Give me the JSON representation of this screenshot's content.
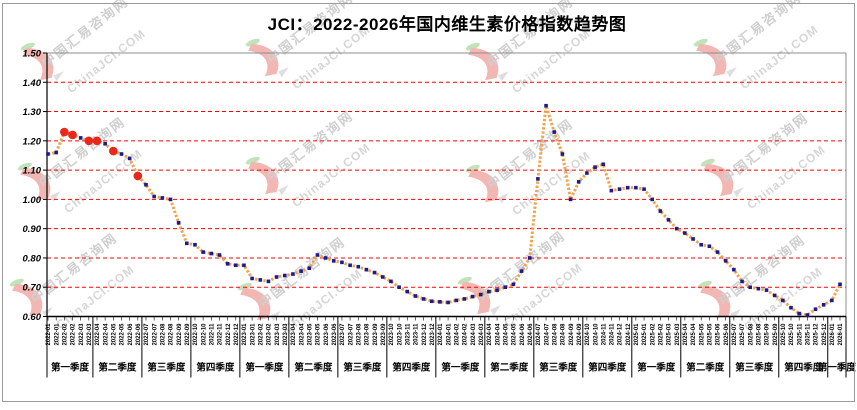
{
  "title": "JCI：2022-2026年国内维生素价格指数趋势图",
  "watermark": {
    "text_cn": "中国汇易咨询网",
    "text_en": "ChinaJCI.COM"
  },
  "chart_data": {
    "type": "line",
    "title": "JCI：2022-2026年国内维生素价格指数趋势图",
    "xlabel": "",
    "ylabel": "",
    "ylim": [
      0.6,
      1.5
    ],
    "ytick_step": 0.1,
    "ytick_labels": [
      "1.50",
      "1.40",
      "1.30",
      "1.20",
      "1.10",
      "1.00",
      "0.90",
      "0.80",
      "0.70",
      "0.60"
    ],
    "grid": "horizontal red dashed lines at 0.70-1.40, solid frame at 1.50 and 0.60",
    "legend_position": "none",
    "marker_style": "small navy squares connected by orange dotted line; six red circle highlights in early 2022",
    "x_labels": [
      "2022-01",
      "2022-01",
      "2022-02",
      "2022-02",
      "2022-03",
      "2022-03",
      "2022-04",
      "2022-04",
      "2022-05",
      "2022-05",
      "2022-06",
      "2022-06",
      "2022-07",
      "2022-07",
      "2022-08",
      "2022-08",
      "2022-09",
      "2022-09",
      "2022-10",
      "2022-10",
      "2022-11",
      "2022-11",
      "2022-12",
      "2022-12",
      "2023-01",
      "2023-01",
      "2023-02",
      "2023-02",
      "2023-03",
      "2023-03",
      "2023-04",
      "2023-04",
      "2023-05",
      "2023-05",
      "2023-06",
      "2023-06",
      "2023-07",
      "2023-07",
      "2023-08",
      "2023-08",
      "2023-09",
      "2023-09",
      "2023-10",
      "2023-10",
      "2023-11",
      "2023-11",
      "2023-12",
      "2023-12",
      "2024-01",
      "2024-01",
      "2024-02",
      "2024-02",
      "2024-03",
      "2024-03",
      "2024-04",
      "2024-04",
      "2024-05",
      "2024-05",
      "2024-06",
      "2024-06",
      "2024-07",
      "2024-07",
      "2024-08",
      "2024-08",
      "2024-09",
      "2024-09",
      "2024-10",
      "2024-10",
      "2024-11",
      "2024-11",
      "2024-12",
      "2024-12",
      "2025-01",
      "2025-01",
      "2025-02",
      "2025-02",
      "2025-03",
      "2025-03",
      "2025-04",
      "2025-04",
      "2025-05",
      "2025-05",
      "2025-06",
      "2025-06",
      "2025-07",
      "2025-07",
      "2025-08",
      "2025-08",
      "2025-09",
      "2025-09",
      "2025-10",
      "2025-10",
      "2025-11",
      "2025-11",
      "2025-12",
      "2025-12",
      "2026-01",
      "2026-01"
    ],
    "values": [
      1.155,
      1.16,
      1.23,
      1.22,
      1.21,
      1.2,
      1.2,
      1.19,
      1.165,
      1.155,
      1.14,
      1.08,
      1.05,
      1.01,
      1.005,
      1.0,
      0.92,
      0.85,
      0.845,
      0.82,
      0.815,
      0.81,
      0.78,
      0.775,
      0.775,
      0.73,
      0.725,
      0.72,
      0.735,
      0.74,
      0.745,
      0.755,
      0.765,
      0.81,
      0.8,
      0.79,
      0.785,
      0.775,
      0.77,
      0.76,
      0.75,
      0.735,
      0.72,
      0.7,
      0.685,
      0.67,
      0.66,
      0.652,
      0.65,
      0.648,
      0.655,
      0.66,
      0.668,
      0.675,
      0.685,
      0.69,
      0.7,
      0.71,
      0.755,
      0.8,
      1.07,
      1.32,
      1.23,
      1.155,
      1.0,
      1.06,
      1.09,
      1.11,
      1.12,
      1.03,
      1.035,
      1.04,
      1.04,
      1.035,
      1.0,
      0.96,
      0.93,
      0.9,
      0.885,
      0.865,
      0.845,
      0.84,
      0.82,
      0.79,
      0.76,
      0.72,
      0.7,
      0.695,
      0.69,
      0.672,
      0.655,
      0.63,
      0.61,
      0.605,
      0.625,
      0.64,
      0.655,
      0.71
    ],
    "highlight_indices": [
      2,
      3,
      5,
      6,
      8,
      11
    ],
    "quarters": [
      {
        "label": "第一季度",
        "ticks": 6
      },
      {
        "label": "第二季度",
        "ticks": 6
      },
      {
        "label": "第三季度",
        "ticks": 6
      },
      {
        "label": "第四季度",
        "ticks": 6
      },
      {
        "label": "第一季度",
        "ticks": 6
      },
      {
        "label": "第二季度",
        "ticks": 6
      },
      {
        "label": "第三季度",
        "ticks": 6
      },
      {
        "label": "第四季度",
        "ticks": 6
      },
      {
        "label": "第一季度",
        "ticks": 6
      },
      {
        "label": "第二季度",
        "ticks": 6
      },
      {
        "label": "第三季度",
        "ticks": 6
      },
      {
        "label": "第四季度",
        "ticks": 6
      },
      {
        "label": "第一季度",
        "ticks": 6
      },
      {
        "label": "第二季度",
        "ticks": 6
      },
      {
        "label": "第三季度",
        "ticks": 6
      },
      {
        "label": "第四季度",
        "ticks": 6
      },
      {
        "label": "第一季度",
        "ticks": 2
      }
    ],
    "colors": {
      "line": "#F0A04A",
      "marker": "#1B1B8E",
      "highlight": "#E8271D",
      "grid": "#FF0000",
      "axis": "#000000",
      "frame": "#8c8c8c",
      "watermark_text": "#c7c7c7",
      "watermark_logo_red": "#F2ABA6",
      "watermark_logo_green": "#B8DFAE"
    }
  }
}
